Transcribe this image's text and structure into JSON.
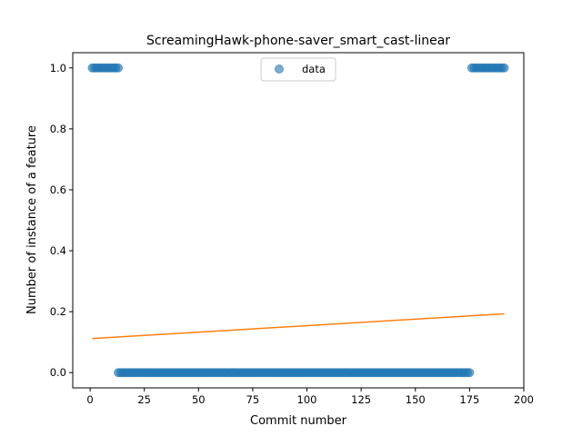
{
  "chart_data": {
    "type": "scatter",
    "title": "ScreamingHawk-phone-saver_smart_cast-linear",
    "xlabel": "Commit number",
    "ylabel": "Number of instance of a feature",
    "xlim": [
      -8,
      200
    ],
    "ylim": [
      -0.05,
      1.05
    ],
    "xticks": [
      0,
      25,
      50,
      75,
      100,
      125,
      150,
      175,
      200
    ],
    "xtick_labels": [
      "0",
      "25",
      "50",
      "75",
      "100",
      "125",
      "150",
      "175",
      "200"
    ],
    "yticks": [
      0.0,
      0.2,
      0.4,
      0.6,
      0.8,
      1.0
    ],
    "ytick_labels": [
      "0.0",
      "0.2",
      "0.4",
      "0.6",
      "0.8",
      "1.0"
    ],
    "grid": false,
    "legend": {
      "placement": "top-center",
      "entries": [
        "data"
      ]
    },
    "series": [
      {
        "name": "data",
        "kind": "scatter",
        "color": "#1f77b4",
        "segments": [
          {
            "x_start": 1,
            "x_end": 13,
            "y": 1
          },
          {
            "x_start": 13,
            "x_end": 175,
            "y": 0
          },
          {
            "x_start": 176,
            "x_end": 191,
            "y": 1
          }
        ]
      },
      {
        "kind": "line",
        "color": "#ff7f0e",
        "x": [
          1,
          191
        ],
        "y": [
          0.112,
          0.193
        ]
      }
    ]
  }
}
